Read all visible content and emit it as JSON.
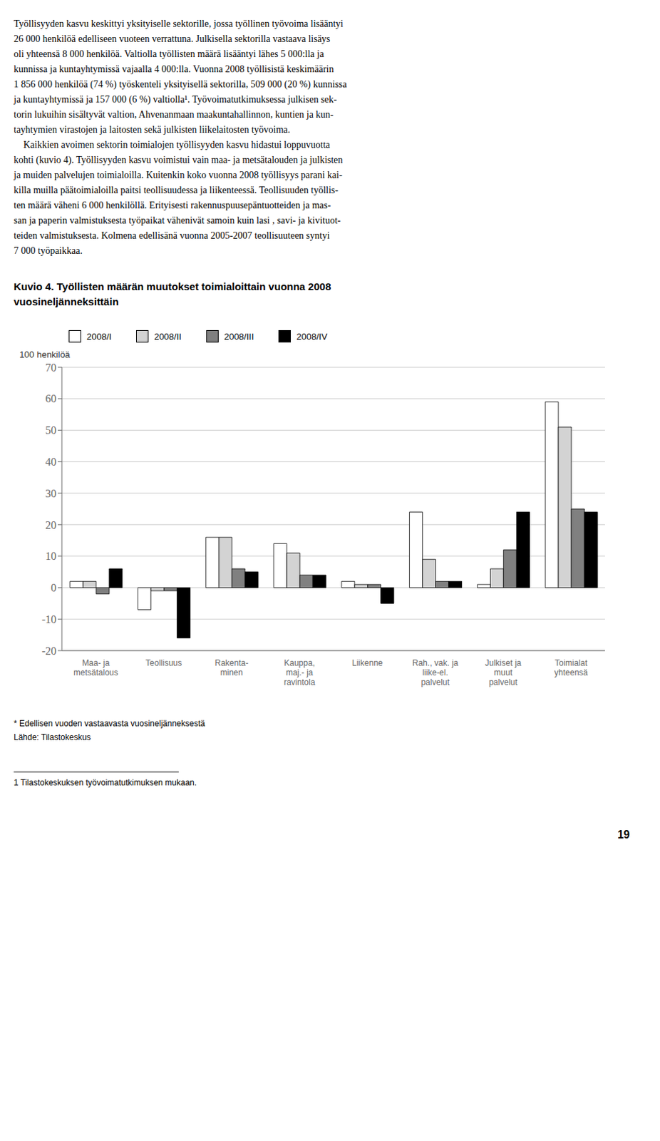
{
  "chart_data": {
    "type": "bar",
    "title": "Kuvio 4. Työllisten määrän muutokset toimialoittain vuonna 2008",
    "subtitle": "vuosineljänneksittäin",
    "ylabel": "100 henkilöä",
    "categories": [
      "Maa- ja\nmetsätalous",
      "Teollisuus",
      "Rakenta-\nminen",
      "Kauppa,\nmaj.- ja\nravintola",
      "Liikenne",
      "Rah., vak. ja\nliike-el.\npalvelut",
      "Julkiset ja\nmuut\npalvelut",
      "Toimialat\nyhteensä"
    ],
    "series": [
      {
        "name": "2008/I",
        "color": "#ffffff",
        "values": [
          2,
          -7,
          16,
          14,
          2,
          24,
          1,
          59
        ]
      },
      {
        "name": "2008/II",
        "color": "#d3d3d3",
        "values": [
          2,
          -1,
          16,
          11,
          1,
          9,
          6,
          51
        ]
      },
      {
        "name": "2008/III",
        "color": "#808080",
        "values": [
          -2,
          -1,
          6,
          4,
          1,
          2,
          12,
          25
        ]
      },
      {
        "name": "2008/IV",
        "color": "#000000",
        "values": [
          6,
          -16,
          5,
          4,
          -5,
          2,
          24,
          24
        ]
      }
    ],
    "ylim": [
      -20,
      70
    ],
    "yticks": [
      -20,
      -10,
      0,
      10,
      20,
      30,
      40,
      50,
      60,
      70
    ],
    "grid": true,
    "legend": "top",
    "annotations": [
      [
        "Työllisyyden kasvu keskittyi yksityiselle sektorille, jossa työllinen työvoima lisääntyi",
        "26 000 henkilöä edelliseen vuoteen verrattuna. Julkisella sektorilla vastaava lisäys",
        "oli yhteensä 8 000 henkilöä. Valtiolla työllisten määrä lisääntyi lähes 5 000:lla ja",
        "kunnissa ja kuntayhtymissä vajaalla 4 000:lla. Vuonna 2008 työllisistä keskimäärin",
        "1 856 000 henkilöä (74 %) työskenteli yksityisellä sektorilla, 509 000 (20 %) kunnissa",
        "ja kuntayhtymissä ja 157 000 (6 %) valtiolla¹. Työvoimatutkimuksessa julkisen sek-",
        "torin lukuihin sisältyvät valtion, Ahvenanmaan maakuntahallinnon, kuntien ja kun-",
        "tayhtymien virastojen ja laitosten sekä julkisten liikelaitosten työvoima.",
        "    Kaikkien avoimen sektorin toimialojen työllisyyden kasvu hidastui loppuvuotta",
        "kohti (kuvio 4). Työllisyyden kasvu voimistui vain maa- ja metsätalouden ja julkisten",
        "ja muiden palvelujen toimialoilla. Kuitenkin koko vuonna 2008 työllisyys parani kai-",
        "killa muilla päätoimialoilla paitsi teollisuudessa ja liikenteessä. Teollisuuden työllis-",
        "ten määrä väheni 6 000 henkilöllä. Erityisesti rakennuspuusepäntuotteiden ja mas-",
        "san ja paperin valmistuksesta työpaikat vähenivät samoin kuin lasi , savi- ja kivituot-",
        "teiden valmistuksesta. Kolmena edellisänä vuonna 2005-2007 teollisuuteen syntyi",
        "7 000 työpaikkaa."
      ],
      [
        "* Edellisen vuoden vastaavasta vuosineljänneksestä",
        "Lähde: Tilastokeskus"
      ],
      [
        "1 Tilastokeskuksen työvoimatutkimuksen mukaan."
      ],
      [
        "19"
      ]
    ]
  }
}
